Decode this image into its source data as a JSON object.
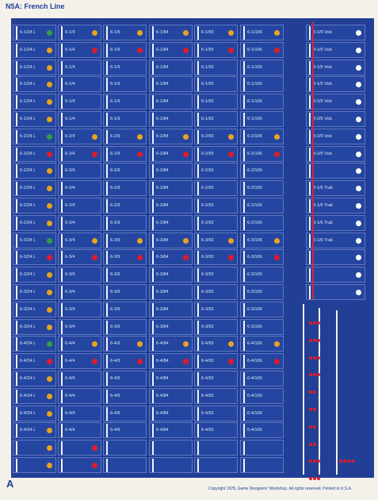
{
  "title": "N5A: French Line",
  "sheet_letter": "A",
  "copyright": "Copyright 1978, Game Designers' Workshop. All rights reserved. Printed in U.S.A.",
  "colors": {
    "green": "#2da04a",
    "yellow": "#e8a321",
    "red": "#e01b2a",
    "white": "#ffffff"
  },
  "columns": [
    {
      "rows": [
        {
          "label": "6-1/24 L",
          "dot": "green"
        },
        {
          "label": "6-1/24 L",
          "dot": "yellow"
        },
        {
          "label": "6-1/24 L",
          "dot": "yellow"
        },
        {
          "label": "6-1/24 L",
          "dot": "yellow"
        },
        {
          "label": "6-1/24 L",
          "dot": "yellow"
        },
        {
          "label": "6-1/24 L",
          "dot": "yellow"
        },
        {
          "label": "6-2/24 L",
          "dot": "green"
        },
        {
          "label": "6-2/24 L",
          "dot": "red"
        },
        {
          "label": "6-2/24 L",
          "dot": "yellow"
        },
        {
          "label": "6-2/24 L",
          "dot": "yellow"
        },
        {
          "label": "6-2/24 L",
          "dot": "yellow"
        },
        {
          "label": "6-2/24 L",
          "dot": "yellow"
        },
        {
          "label": "6-3/24 L",
          "dot": "green"
        },
        {
          "label": "6-3/24 L",
          "dot": "red"
        },
        {
          "label": "6-3/24 L",
          "dot": "yellow"
        },
        {
          "label": "6-3/24 L",
          "dot": "yellow"
        },
        {
          "label": "6-3/24 L",
          "dot": "yellow"
        },
        {
          "label": "6-3/24 L",
          "dot": "yellow"
        },
        {
          "label": "6-4/24 L",
          "dot": "green"
        },
        {
          "label": "6-4/24 L",
          "dot": "red"
        },
        {
          "label": "6-4/24 L",
          "dot": "yellow"
        },
        {
          "label": "6-4/24 L",
          "dot": "yellow"
        },
        {
          "label": "6-4/24 L",
          "dot": "yellow"
        },
        {
          "label": "6-4/24 L",
          "dot": "yellow"
        },
        {
          "label": "",
          "dot": "yellow"
        },
        {
          "label": "",
          "dot": "yellow"
        }
      ]
    },
    {
      "rows": [
        {
          "label": "6-1/4",
          "dot": "yellow"
        },
        {
          "label": "6-1/4",
          "dot": "red"
        },
        {
          "label": "6-1/4",
          "dot": ""
        },
        {
          "label": "6-1/4",
          "dot": ""
        },
        {
          "label": "6-1/4",
          "dot": ""
        },
        {
          "label": "6-1/4",
          "dot": ""
        },
        {
          "label": "6-2/4",
          "dot": "yellow"
        },
        {
          "label": "6-2/4",
          "dot": "red"
        },
        {
          "label": "6-2/4",
          "dot": ""
        },
        {
          "label": "6-2/4",
          "dot": ""
        },
        {
          "label": "6-2/4",
          "dot": ""
        },
        {
          "label": "6-2/4",
          "dot": ""
        },
        {
          "label": "6-3/4",
          "dot": "yellow"
        },
        {
          "label": "6-3/4",
          "dot": "red"
        },
        {
          "label": "6-3/4",
          "dot": ""
        },
        {
          "label": "6-3/4",
          "dot": ""
        },
        {
          "label": "6-3/4",
          "dot": ""
        },
        {
          "label": "6-3/4",
          "dot": ""
        },
        {
          "label": "6-4/4",
          "dot": "yellow"
        },
        {
          "label": "6-4/4",
          "dot": "red"
        },
        {
          "label": "6-4/4",
          "dot": ""
        },
        {
          "label": "6-4/4",
          "dot": ""
        },
        {
          "label": "6-4/4",
          "dot": ""
        },
        {
          "label": "6-4/4",
          "dot": ""
        },
        {
          "label": "",
          "dot": "red"
        },
        {
          "label": "",
          "dot": "red"
        }
      ]
    },
    {
      "rows": [
        {
          "label": "6-1/9",
          "dot": "yellow"
        },
        {
          "label": "6-1/9",
          "dot": "red"
        },
        {
          "label": "6-1/9",
          "dot": ""
        },
        {
          "label": "6-1/9",
          "dot": ""
        },
        {
          "label": "6-1/9",
          "dot": ""
        },
        {
          "label": "6-1/9",
          "dot": ""
        },
        {
          "label": "6-2/9",
          "dot": "yellow"
        },
        {
          "label": "6-2/9",
          "dot": "red"
        },
        {
          "label": "6-2/9",
          "dot": ""
        },
        {
          "label": "6-2/9",
          "dot": ""
        },
        {
          "label": "6-2/9",
          "dot": ""
        },
        {
          "label": "6-2/9",
          "dot": ""
        },
        {
          "label": "6-3/9",
          "dot": "yellow"
        },
        {
          "label": "6-3/9",
          "dot": "red"
        },
        {
          "label": "6-3/9",
          "dot": ""
        },
        {
          "label": "6-3/9",
          "dot": ""
        },
        {
          "label": "6-3/9",
          "dot": ""
        },
        {
          "label": "6-3/9",
          "dot": ""
        },
        {
          "label": "6-4/9",
          "dot": "yellow"
        },
        {
          "label": "6-4/9",
          "dot": "red"
        },
        {
          "label": "6-4/9",
          "dot": ""
        },
        {
          "label": "6-4/9",
          "dot": ""
        },
        {
          "label": "6-4/9",
          "dot": ""
        },
        {
          "label": "6-4/9",
          "dot": ""
        },
        {
          "label": "",
          "dot": ""
        },
        {
          "label": "",
          "dot": ""
        }
      ]
    },
    {
      "rows": [
        {
          "label": "6-1/84",
          "dot": "yellow"
        },
        {
          "label": "6-1/84",
          "dot": "red"
        },
        {
          "label": "6-1/84",
          "dot": ""
        },
        {
          "label": "6-1/84",
          "dot": ""
        },
        {
          "label": "6-1/84",
          "dot": ""
        },
        {
          "label": "6-1/84",
          "dot": ""
        },
        {
          "label": "6-2/84",
          "dot": "yellow"
        },
        {
          "label": "6-2/84",
          "dot": "red"
        },
        {
          "label": "6-2/84",
          "dot": ""
        },
        {
          "label": "6-2/84",
          "dot": ""
        },
        {
          "label": "6-2/84",
          "dot": ""
        },
        {
          "label": "6-2/84",
          "dot": ""
        },
        {
          "label": "6-3/84",
          "dot": "yellow"
        },
        {
          "label": "6-3/84",
          "dot": "red"
        },
        {
          "label": "6-3/84",
          "dot": ""
        },
        {
          "label": "6-3/84",
          "dot": ""
        },
        {
          "label": "6-3/84",
          "dot": ""
        },
        {
          "label": "6-3/84",
          "dot": ""
        },
        {
          "label": "6-4/84",
          "dot": "yellow"
        },
        {
          "label": "6-4/84",
          "dot": "red"
        },
        {
          "label": "6-4/84",
          "dot": ""
        },
        {
          "label": "6-4/84",
          "dot": ""
        },
        {
          "label": "6-4/84",
          "dot": ""
        },
        {
          "label": "6-4/84",
          "dot": ""
        },
        {
          "label": "",
          "dot": ""
        },
        {
          "label": "",
          "dot": ""
        }
      ]
    },
    {
      "rows": [
        {
          "label": "6-1/93",
          "dot": "yellow"
        },
        {
          "label": "6-1/93",
          "dot": "red"
        },
        {
          "label": "6-1/93",
          "dot": ""
        },
        {
          "label": "6-1/93",
          "dot": ""
        },
        {
          "label": "6-1/93",
          "dot": ""
        },
        {
          "label": "6-1/93",
          "dot": ""
        },
        {
          "label": "6-2/93",
          "dot": "yellow"
        },
        {
          "label": "6-2/93",
          "dot": "red"
        },
        {
          "label": "6-2/93",
          "dot": ""
        },
        {
          "label": "6-2/93",
          "dot": ""
        },
        {
          "label": "6-2/93",
          "dot": ""
        },
        {
          "label": "6-2/93",
          "dot": ""
        },
        {
          "label": "6-3/93",
          "dot": "yellow"
        },
        {
          "label": "6-3/93",
          "dot": "red"
        },
        {
          "label": "6-3/93",
          "dot": ""
        },
        {
          "label": "6-3/93",
          "dot": ""
        },
        {
          "label": "6-3/93",
          "dot": ""
        },
        {
          "label": "6-3/93",
          "dot": ""
        },
        {
          "label": "6-4/93",
          "dot": "yellow"
        },
        {
          "label": "6-4/93",
          "dot": "red"
        },
        {
          "label": "6-4/93",
          "dot": ""
        },
        {
          "label": "6-4/93",
          "dot": ""
        },
        {
          "label": "6-4/93",
          "dot": ""
        },
        {
          "label": "6-4/93",
          "dot": ""
        },
        {
          "label": "",
          "dot": ""
        },
        {
          "label": "",
          "dot": ""
        }
      ]
    },
    {
      "rows": [
        {
          "label": "6-1/106",
          "dot": "yellow"
        },
        {
          "label": "6-1/106",
          "dot": "red"
        },
        {
          "label": "6-1/106",
          "dot": ""
        },
        {
          "label": "6-1/106",
          "dot": ""
        },
        {
          "label": "6-1/106",
          "dot": ""
        },
        {
          "label": "6-1/106",
          "dot": ""
        },
        {
          "label": "6-2/106",
          "dot": "yellow"
        },
        {
          "label": "6-2/106",
          "dot": "red"
        },
        {
          "label": "6-2/106",
          "dot": ""
        },
        {
          "label": "6-2/106",
          "dot": ""
        },
        {
          "label": "6-2/106",
          "dot": ""
        },
        {
          "label": "6-2/106",
          "dot": ""
        },
        {
          "label": "6-3/106",
          "dot": "yellow"
        },
        {
          "label": "6-3/106",
          "dot": "red"
        },
        {
          "label": "6-3/106",
          "dot": ""
        },
        {
          "label": "6-3/106",
          "dot": ""
        },
        {
          "label": "6-3/106",
          "dot": ""
        },
        {
          "label": "6-3/106",
          "dot": ""
        },
        {
          "label": "6-4/106",
          "dot": "yellow"
        },
        {
          "label": "6-4/106",
          "dot": "red"
        },
        {
          "label": "6-4/106",
          "dot": ""
        },
        {
          "label": "6-4/106",
          "dot": ""
        },
        {
          "label": "6-4/106",
          "dot": ""
        },
        {
          "label": "6-4/106",
          "dot": ""
        },
        {
          "label": "",
          "dot": ""
        },
        {
          "label": "",
          "dot": ""
        }
      ]
    }
  ],
  "special": [
    {
      "label": "8-1/5 Voit.",
      "dot": "white"
    },
    {
      "label": "8-1/5 Voit.",
      "dot": "white"
    },
    {
      "label": "8-1/5 Voit.",
      "dot": "white"
    },
    {
      "label": "8-1/5 Voit.",
      "dot": "white"
    },
    {
      "label": "8-2/5 Voit.",
      "dot": "white"
    },
    {
      "label": "8-2/5 Voit.",
      "dot": "white"
    },
    {
      "label": "8-2/5 Voit.",
      "dot": "white"
    },
    {
      "label": "8-2/5 Voit.",
      "dot": "white"
    },
    {
      "label": "",
      "dot": "white"
    },
    {
      "label": "8-1/6 Trail.",
      "dot": "white"
    },
    {
      "label": "8-1/6 Trail.",
      "dot": "white"
    },
    {
      "label": "8-1/6 Trail.",
      "dot": "white"
    },
    {
      "label": "8-1/6 Trail.",
      "dot": "white"
    },
    {
      "label": "",
      "dot": "white"
    },
    {
      "label": "",
      "dot": "white"
    },
    {
      "label": "",
      "dot": "white"
    }
  ],
  "markers": [
    3,
    3,
    3,
    3,
    2,
    2,
    2,
    2,
    3,
    3
  ]
}
